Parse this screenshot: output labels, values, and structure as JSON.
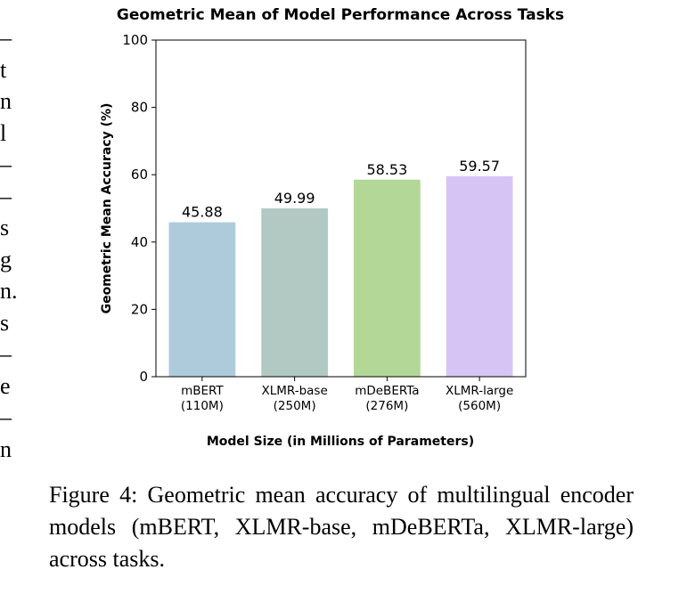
{
  "left_margin_fragments": [
    "–",
    "t",
    "n",
    "l",
    "–",
    "–",
    "s",
    "g",
    "n.",
    "s",
    "–",
    "e",
    "–",
    "n"
  ],
  "chart_data": {
    "type": "bar",
    "title": "Geometric Mean of Model Performance Across Tasks",
    "xlabel": "Model Size (in Millions of Parameters)",
    "ylabel": "Geometric Mean Accuracy (%)",
    "categories": [
      {
        "name": "mBERT",
        "size": "(110M)"
      },
      {
        "name": "XLMR-base",
        "size": "(250M)"
      },
      {
        "name": "mDeBERTa",
        "size": "(276M)"
      },
      {
        "name": "XLMR-large",
        "size": "(560M)"
      }
    ],
    "values": [
      45.88,
      49.99,
      58.53,
      59.57
    ],
    "value_labels": [
      "45.88",
      "49.99",
      "58.53",
      "59.57"
    ],
    "colors": [
      "#aecbdc",
      "#b2c9c3",
      "#b3d796",
      "#d6c5f4"
    ],
    "ylim": [
      0,
      100
    ],
    "yticks": [
      0,
      20,
      40,
      60,
      80,
      100
    ],
    "grid": false
  },
  "caption": "Figure 4: Geometric mean accuracy of multilingual encoder models (mBERT, XLMR-base, mDeBERTa, XLMR-large) across tasks."
}
